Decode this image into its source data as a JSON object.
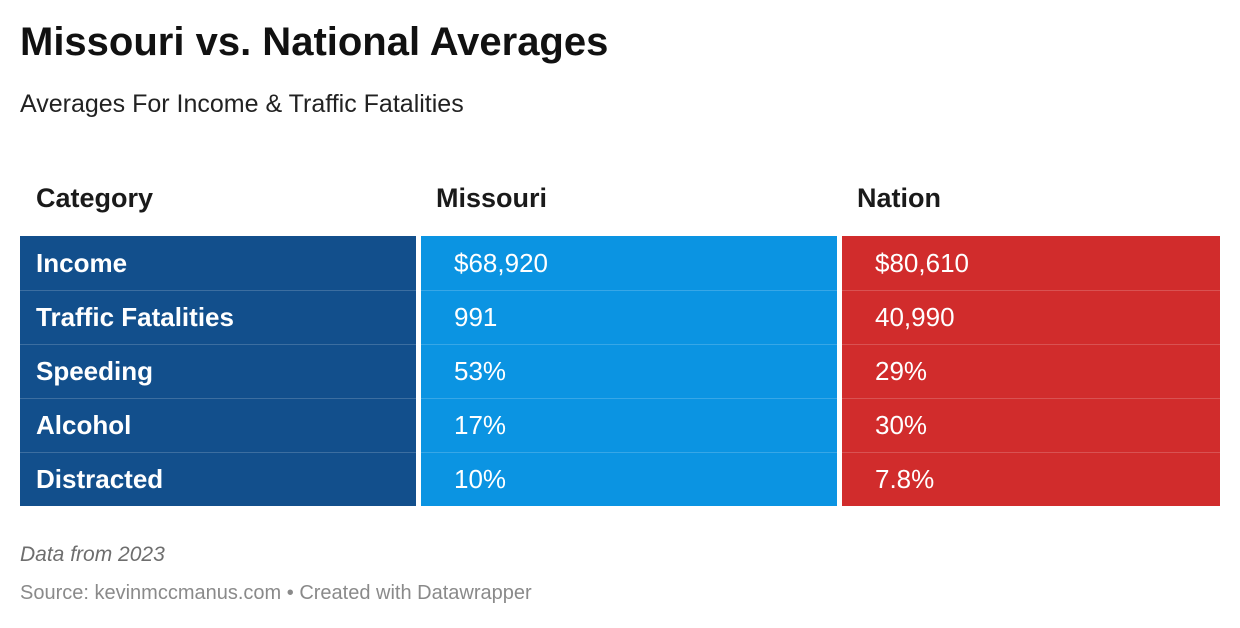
{
  "title": "Missouri vs. National Averages",
  "subtitle": "Averages For Income & Traffic Fatalities",
  "colors": {
    "category_bg": "#124f8c",
    "missouri_bg": "#0b94e2",
    "nation_bg": "#d12c2c"
  },
  "chart_data": {
    "type": "table",
    "columns": [
      "Category",
      "Missouri",
      "Nation"
    ],
    "rows": [
      {
        "category": "Income",
        "missouri": "$68,920",
        "nation": "$80,610"
      },
      {
        "category": "Traffic Fatalities",
        "missouri": "991",
        "nation": "40,990"
      },
      {
        "category": "Speeding",
        "missouri": "53%",
        "nation": "29%"
      },
      {
        "category": "Alcohol",
        "missouri": "17%",
        "nation": "30%"
      },
      {
        "category": "Distracted",
        "missouri": "10%",
        "nation": "7.8%"
      }
    ]
  },
  "footer": {
    "note": "Data from 2023",
    "source": "Source: kevinmccmanus.com • Created with Datawrapper"
  }
}
